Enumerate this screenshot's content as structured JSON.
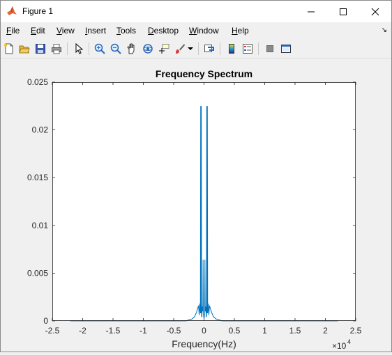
{
  "window": {
    "title": "Figure 1",
    "app_icon": "matlab-icon"
  },
  "menu": [
    {
      "label": "File",
      "u": "F",
      "rest": "ile"
    },
    {
      "label": "Edit",
      "u": "E",
      "rest": "dit"
    },
    {
      "label": "View",
      "u": "V",
      "rest": "iew"
    },
    {
      "label": "Insert",
      "u": "I",
      "rest": "nsert"
    },
    {
      "label": "Tools",
      "u": "T",
      "rest": "ools"
    },
    {
      "label": "Desktop",
      "u": "D",
      "rest": "esktop"
    },
    {
      "label": "Window",
      "u": "W",
      "rest": "indow"
    },
    {
      "label": "Help",
      "u": "H",
      "rest": "elp"
    }
  ],
  "toolbar": [
    "new-figure-icon",
    "open-file-icon",
    "save-icon",
    "print-icon",
    "pointer-icon",
    "zoom-in-icon",
    "zoom-out-icon",
    "pan-icon",
    "rotate-3d-icon",
    "data-cursor-icon",
    "brush-icon",
    "link-plot-icon",
    "colorbar-icon",
    "legend-icon",
    "hide-plot-tools-icon",
    "show-plot-tools-icon"
  ],
  "chart_data": {
    "type": "line",
    "title": "Frequency Spectrum",
    "xlabel": "Frequency(Hz)",
    "ylabel": "",
    "x_exponent_label": "×10",
    "x_exponent": "4",
    "xlim": [
      -25000,
      25000
    ],
    "ylim": [
      0,
      0.025
    ],
    "xticks": [
      -25000,
      -20000,
      -15000,
      -10000,
      -5000,
      0,
      5000,
      10000,
      15000,
      20000,
      25000
    ],
    "xtick_labels": [
      "-2.5",
      "-2",
      "-1.5",
      "-1",
      "-0.5",
      "0",
      "0.5",
      "1",
      "1.5",
      "2",
      "2.5"
    ],
    "yticks": [
      0,
      0.005,
      0.01,
      0.015,
      0.02,
      0.025
    ],
    "ytick_labels": [
      "0",
      "0.005",
      "0.01",
      "0.015",
      "0.02",
      "0.025"
    ],
    "series": [
      {
        "color": "#0072bd",
        "x": [
          -22050,
          -3000,
          -2500,
          -2000,
          -1600,
          -1300,
          -1100,
          -900,
          -800,
          -700,
          -600,
          -550,
          -500,
          -450,
          -400,
          -350,
          -300,
          -200,
          -150,
          -100,
          -50,
          0,
          50,
          100,
          150,
          200,
          300,
          350,
          400,
          450,
          500,
          550,
          600,
          700,
          800,
          900,
          1100,
          1300,
          1600,
          2000,
          2500,
          3000,
          22050
        ],
        "y": [
          0,
          0,
          0.0001,
          0.0002,
          0.0004,
          0.0008,
          0.0012,
          0.0016,
          0.0006,
          0.0018,
          0.0008,
          0.0225,
          0.0008,
          0.0225,
          0.0005,
          0.0004,
          0.0015,
          0.001,
          0.0064,
          0.0007,
          0.0004,
          0.0003,
          0.0004,
          0.0007,
          0.0064,
          0.001,
          0.0015,
          0.0004,
          0.0005,
          0.0225,
          0.0008,
          0.0225,
          0.0008,
          0.0018,
          0.0006,
          0.0016,
          0.0012,
          0.0008,
          0.0004,
          0.0002,
          0.0001,
          0,
          0
        ]
      }
    ]
  }
}
